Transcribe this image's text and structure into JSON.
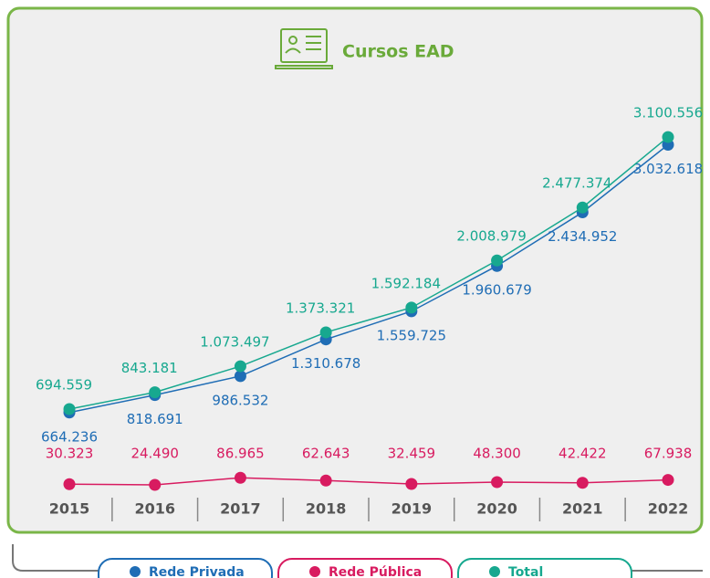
{
  "chart_data": {
    "type": "line",
    "title": "Cursos EAD",
    "categories": [
      "2015",
      "2016",
      "2017",
      "2018",
      "2019",
      "2020",
      "2021",
      "2022"
    ],
    "ylim": [
      0,
      3400000
    ],
    "series": [
      {
        "name": "Rede Privada",
        "color": "#1f6db5",
        "values": [
          664236,
          818691,
          986532,
          1310678,
          1559725,
          1960679,
          2434952,
          3032618
        ],
        "value_labels": [
          "664.236",
          "818.691",
          "986.532",
          "1.310.678",
          "1.559.725",
          "1.960.679",
          "2.434.952",
          "3.032.618"
        ]
      },
      {
        "name": "Rede Pública",
        "color": "#d81b60",
        "values": [
          30323,
          24490,
          86965,
          62643,
          32459,
          48300,
          42422,
          67938
        ],
        "value_labels": [
          "30.323",
          "24.490",
          "86.965",
          "62.643",
          "32.459",
          "48.300",
          "42.422",
          "67.938"
        ]
      },
      {
        "name": "Total",
        "color": "#17a88f",
        "values": [
          694559,
          843181,
          1073497,
          1373321,
          1592184,
          2008979,
          2477374,
          3100556
        ],
        "value_labels": [
          "694.559",
          "843.181",
          "1.073.497",
          "1.373.321",
          "1.592.184",
          "2.008.979",
          "2.477.374",
          "3.100.556"
        ]
      }
    ]
  }
}
